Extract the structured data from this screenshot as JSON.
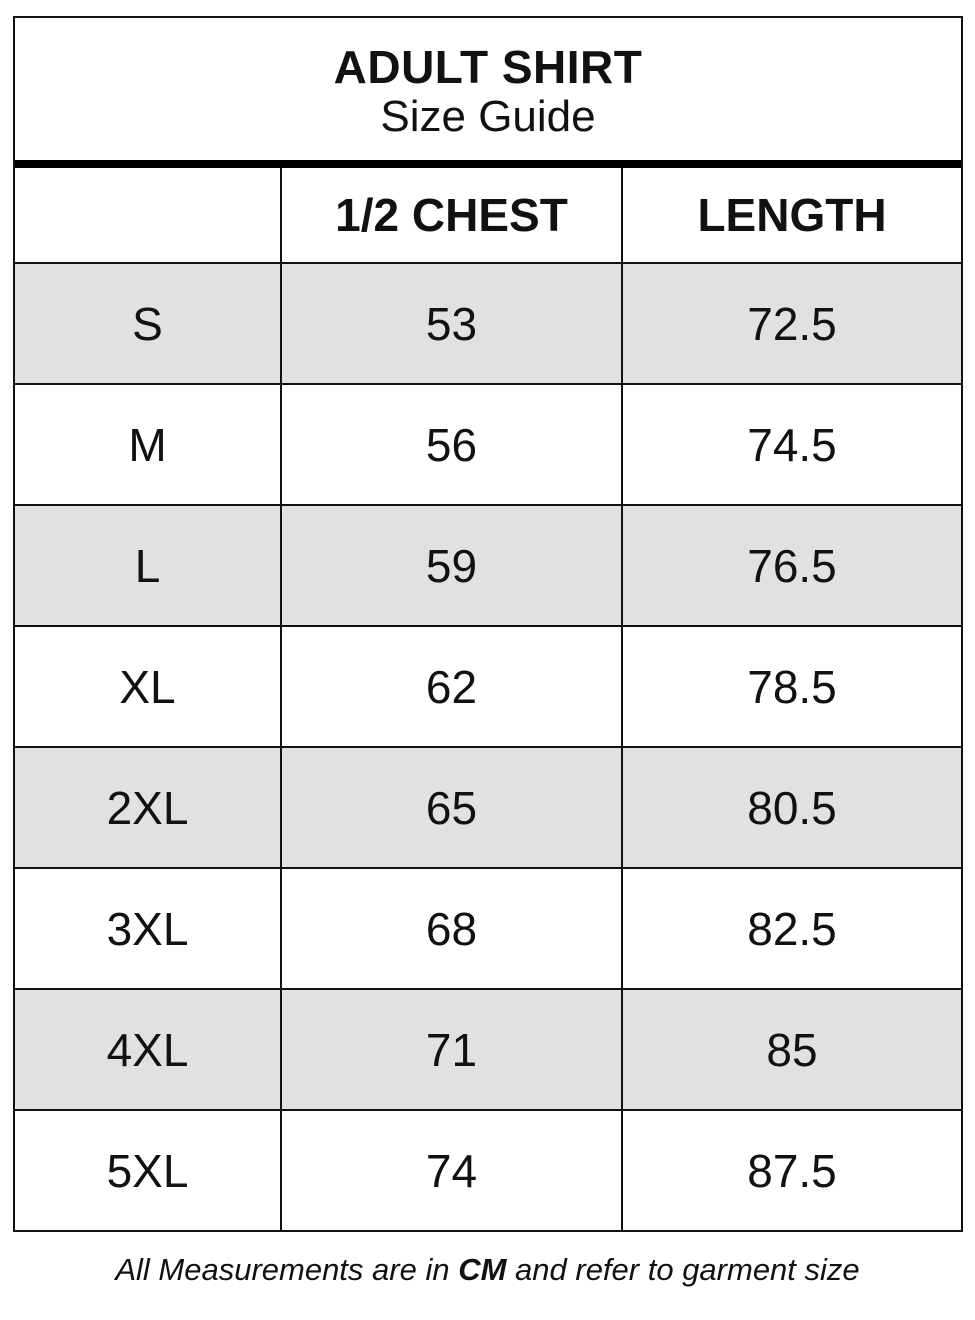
{
  "header": {
    "title": "ADULT SHIRT",
    "subtitle": "Size Guide"
  },
  "table": {
    "columns": [
      "",
      "1/2 CHEST",
      "LENGTH"
    ],
    "rows": [
      [
        "S",
        "53",
        "72.5"
      ],
      [
        "M",
        "56",
        "74.5"
      ],
      [
        "L",
        "59",
        "76.5"
      ],
      [
        "XL",
        "62",
        "78.5"
      ],
      [
        "2XL",
        "65",
        "80.5"
      ],
      [
        "3XL",
        "68",
        "82.5"
      ],
      [
        "4XL",
        "71",
        "85"
      ],
      [
        "5XL",
        "74",
        "87.5"
      ]
    ],
    "shaded_row_color": "#e0e1e0"
  },
  "footer": {
    "before": "All Measurements are in ",
    "unit": "CM",
    "after": " and refer to garment size"
  }
}
